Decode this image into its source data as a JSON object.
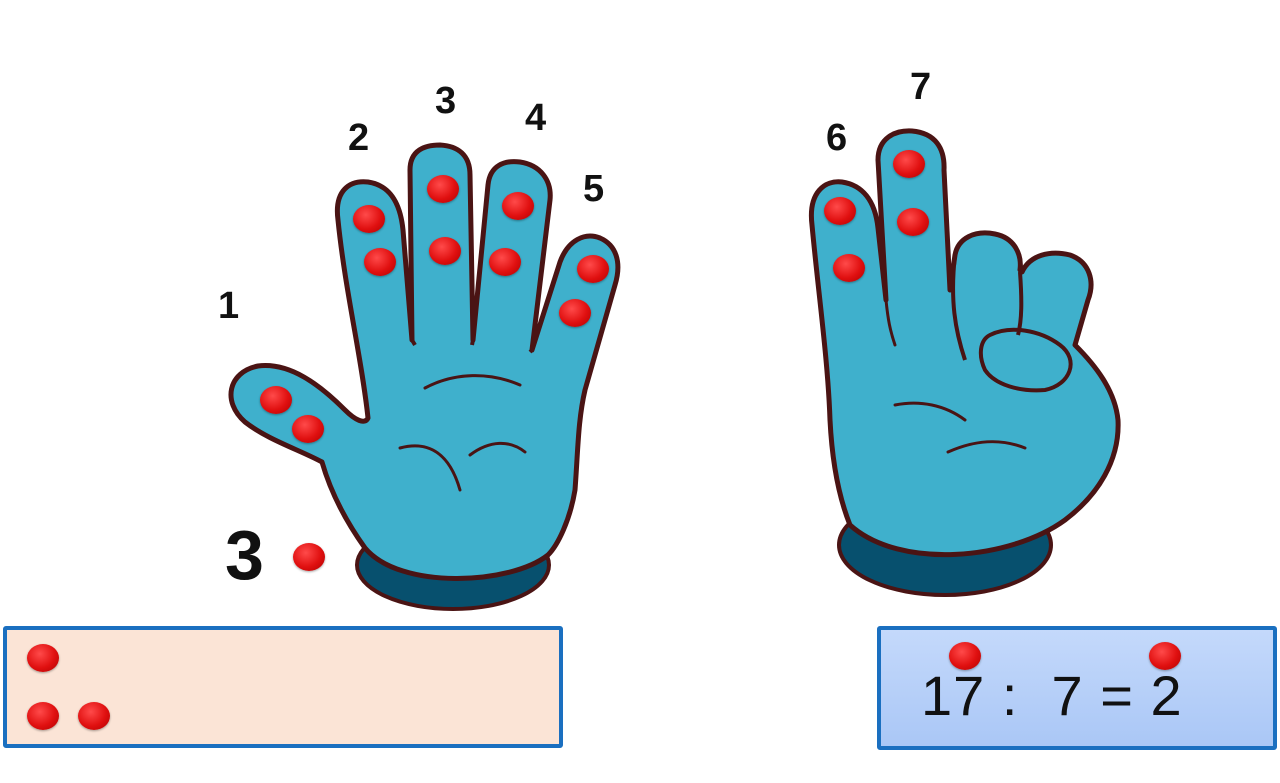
{
  "finger_numbers": [
    "1",
    "2",
    "3",
    "4",
    "5",
    "6",
    "7"
  ],
  "remainder": "3",
  "equation": "17 :  7 = 2",
  "colors": {
    "hand": "#3fb0cc",
    "hand_outline": "#4a1414",
    "cuff": "#07506e",
    "counter": "#e01010",
    "left_box_fill": "#fbe4d6",
    "right_box_fill": "#b8d0f8",
    "box_border": "#1a6fc0"
  }
}
